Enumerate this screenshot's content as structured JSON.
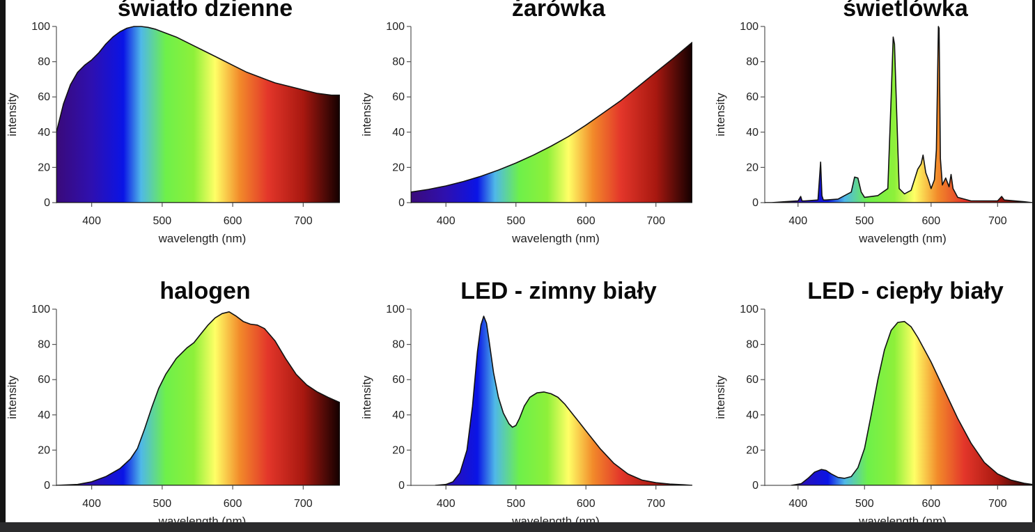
{
  "figure": {
    "gradient_stops": [
      {
        "nm": 350,
        "color": "#3a0a7a"
      },
      {
        "nm": 400,
        "color": "#2e10b0"
      },
      {
        "nm": 445,
        "color": "#0a14e6"
      },
      {
        "nm": 470,
        "color": "#4fb8e8"
      },
      {
        "nm": 505,
        "color": "#6ef04a"
      },
      {
        "nm": 545,
        "color": "#8ef03a"
      },
      {
        "nm": 575,
        "color": "#ffff66"
      },
      {
        "nm": 610,
        "color": "#f28a2a"
      },
      {
        "nm": 650,
        "color": "#e3362a"
      },
      {
        "nm": 700,
        "color": "#a81810"
      },
      {
        "nm": 752,
        "color": "#120000"
      }
    ]
  },
  "chart_data": [
    {
      "type": "area",
      "title": "światło dzienne",
      "xlabel": "wavelength (nm)",
      "ylabel": "intensity",
      "xlim": [
        350,
        752
      ],
      "ylim": [
        0,
        100
      ],
      "xticks": [
        "400",
        "500",
        "600",
        "700"
      ],
      "yticks": [
        "0",
        "20",
        "40",
        "60",
        "80",
        "100"
      ],
      "x": [
        350,
        360,
        370,
        380,
        390,
        400,
        410,
        420,
        430,
        440,
        450,
        460,
        470,
        480,
        490,
        500,
        520,
        540,
        560,
        580,
        600,
        620,
        640,
        660,
        680,
        700,
        720,
        740,
        752
      ],
      "y": [
        40,
        56,
        67,
        74,
        78,
        81,
        85,
        90,
        94,
        97,
        99,
        100,
        100,
        99.5,
        98.5,
        97,
        94,
        90,
        86,
        82,
        78,
        74,
        71,
        68,
        66,
        64,
        62,
        61,
        61
      ]
    },
    {
      "type": "area",
      "title": "żarówka",
      "xlabel": "wavelength (nm)",
      "ylabel": "intensity",
      "xlim": [
        350,
        752
      ],
      "ylim": [
        0,
        100
      ],
      "xticks": [
        "400",
        "500",
        "600",
        "700"
      ],
      "yticks": [
        "0",
        "20",
        "40",
        "60",
        "80",
        "100"
      ],
      "x": [
        350,
        375,
        400,
        425,
        450,
        475,
        500,
        525,
        550,
        575,
        600,
        625,
        650,
        675,
        700,
        725,
        740,
        752
      ],
      "y": [
        6,
        7.5,
        9.5,
        12,
        15,
        18.5,
        22.5,
        27,
        32,
        37.5,
        44,
        51,
        58,
        66,
        74,
        82,
        87,
        91
      ]
    },
    {
      "type": "area",
      "title": "świetlówka",
      "xlabel": "wavelength (nm)",
      "ylabel": "intensity",
      "xlim": [
        350,
        752
      ],
      "ylim": [
        0,
        100
      ],
      "xticks": [
        "400",
        "500",
        "600",
        "700"
      ],
      "yticks": [
        "0",
        "20",
        "40",
        "60",
        "80",
        "100"
      ],
      "x": [
        350,
        360,
        380,
        400,
        404,
        406,
        410,
        430,
        434,
        436,
        438,
        442,
        460,
        480,
        485,
        490,
        495,
        500,
        520,
        535,
        540,
        543,
        545,
        548,
        552,
        560,
        570,
        575,
        580,
        585,
        588,
        592,
        596,
        600,
        605,
        608,
        611,
        612,
        614,
        617,
        622,
        627,
        630,
        633,
        640,
        660,
        700,
        706,
        710,
        740,
        752
      ],
      "y": [
        0,
        0,
        0.5,
        1,
        3.5,
        1,
        1,
        1.5,
        23,
        4,
        1.5,
        1.5,
        2,
        6,
        14.5,
        14,
        6,
        3,
        4,
        8,
        60,
        94,
        90,
        55,
        8,
        5,
        7,
        13,
        19,
        22,
        27,
        17,
        13,
        8,
        13,
        30,
        100,
        99,
        25,
        10,
        14,
        9,
        16,
        8,
        3,
        1,
        1,
        3.5,
        1.5,
        0.5,
        0
      ]
    },
    {
      "type": "area",
      "title": "halogen",
      "xlabel": "wavelength (nm)",
      "ylabel": "intensity",
      "xlim": [
        350,
        752
      ],
      "ylim": [
        0,
        100
      ],
      "xticks": [
        "400",
        "500",
        "600",
        "700"
      ],
      "yticks": [
        "0",
        "20",
        "40",
        "60",
        "80",
        "100"
      ],
      "x": [
        350,
        380,
        400,
        420,
        440,
        455,
        465,
        475,
        485,
        495,
        505,
        520,
        535,
        545,
        555,
        565,
        575,
        585,
        595,
        605,
        615,
        625,
        635,
        645,
        660,
        675,
        690,
        705,
        720,
        735,
        752
      ],
      "y": [
        0,
        0.5,
        2,
        5,
        9.5,
        15,
        21,
        32,
        44,
        55,
        63,
        72,
        78,
        81,
        86,
        91,
        95,
        97.5,
        98.5,
        96,
        93,
        91.5,
        91,
        89,
        82,
        72,
        63,
        57,
        53,
        50,
        47
      ]
    },
    {
      "type": "area",
      "title": "LED - zimny biały",
      "xlabel": "wavelength (nm)",
      "ylabel": "intensity",
      "xlim": [
        350,
        752
      ],
      "ylim": [
        0,
        100
      ],
      "xticks": [
        "400",
        "500",
        "600",
        "700"
      ],
      "yticks": [
        "0",
        "20",
        "40",
        "60",
        "80",
        "100"
      ],
      "x": [
        385,
        400,
        410,
        420,
        430,
        438,
        445,
        450,
        454,
        458,
        462,
        468,
        475,
        482,
        490,
        495,
        500,
        505,
        512,
        520,
        530,
        540,
        550,
        560,
        570,
        580,
        590,
        600,
        620,
        640,
        660,
        680,
        700,
        720,
        740,
        752
      ],
      "y": [
        0,
        0.5,
        2,
        7,
        20,
        45,
        76,
        91,
        96,
        92,
        81,
        64,
        50,
        41,
        35,
        33,
        34,
        38,
        45,
        50,
        52.5,
        53,
        52,
        50,
        46,
        41,
        36,
        31,
        21,
        12.5,
        6.5,
        3,
        1.5,
        0.7,
        0.3,
        0
      ]
    },
    {
      "type": "area",
      "title": "LED - ciepły biały",
      "xlabel": "wavelength (nm)",
      "ylabel": "intensity",
      "xlim": [
        350,
        752
      ],
      "ylim": [
        0,
        100
      ],
      "xticks": [
        "400",
        "500",
        "600",
        "700"
      ],
      "yticks": [
        "0",
        "20",
        "40",
        "60",
        "80",
        "100"
      ],
      "x": [
        390,
        405,
        415,
        425,
        435,
        442,
        450,
        460,
        470,
        480,
        490,
        500,
        510,
        520,
        530,
        540,
        550,
        560,
        570,
        580,
        590,
        600,
        620,
        640,
        660,
        680,
        700,
        720,
        740,
        752
      ],
      "y": [
        0,
        1,
        4,
        7.5,
        9,
        8.5,
        6.5,
        4.5,
        4,
        5,
        10,
        21,
        40,
        60,
        77,
        88,
        92.5,
        93,
        90,
        84,
        77,
        70,
        54,
        38,
        24,
        13,
        6.5,
        3,
        1.2,
        0.5
      ]
    }
  ]
}
